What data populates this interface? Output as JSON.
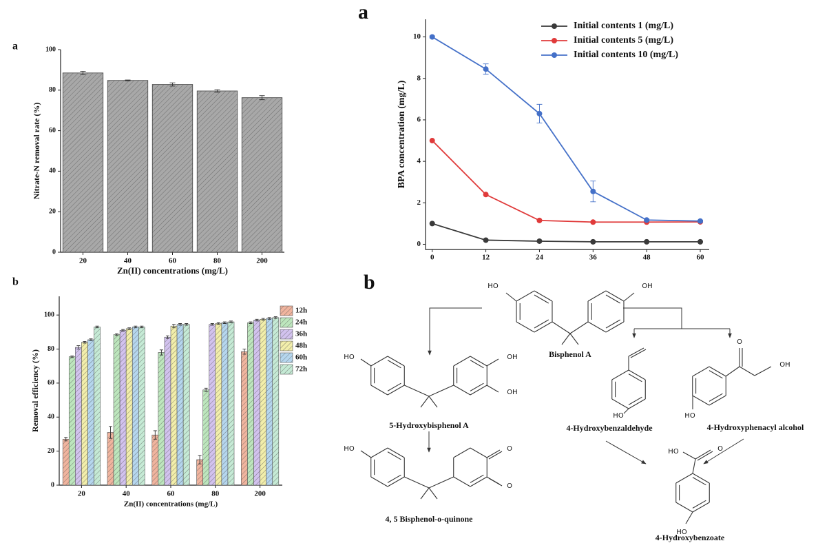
{
  "chart_data": [
    {
      "type": "bar",
      "panel_label": "a",
      "xlabel": "Zn(II) concentrations (mg/L)",
      "ylabel": "Nitrate-N removal rate (%)",
      "categories": [
        "20",
        "40",
        "60",
        "80",
        "200"
      ],
      "values": [
        88.5,
        84.8,
        82.8,
        79.6,
        76.3
      ],
      "errors": [
        0.8,
        0.2,
        0.8,
        0.6,
        1.0
      ],
      "color": "#a8a8a8",
      "hatch": true,
      "ylim": [
        0,
        100
      ],
      "yticks": [
        0,
        20,
        40,
        60,
        80,
        100
      ]
    },
    {
      "type": "line",
      "panel_label": "a",
      "ylabel": "BPA concentration (mg/L)",
      "x": [
        0,
        12,
        24,
        36,
        48,
        60
      ],
      "xlim": [
        -1.5,
        62
      ],
      "xticks": [
        0,
        12,
        24,
        36,
        48,
        60
      ],
      "ylim": [
        -0.25,
        10.85
      ],
      "yticks": [
        0,
        2,
        4,
        6,
        8,
        10
      ],
      "legend": "upper right",
      "series": [
        {
          "name": "Initial contents 1 (mg/L)",
          "color": "#3a3a3a",
          "values": [
            1.0,
            0.2,
            0.15,
            0.12,
            0.12,
            0.12
          ]
        },
        {
          "name": "Initial contents 5 (mg/L)",
          "color": "#e03a3a",
          "values": [
            5.0,
            2.4,
            1.15,
            1.07,
            1.07,
            1.08
          ]
        },
        {
          "name": "Initial contents 10 (mg/L)",
          "color": "#4470c8",
          "values": [
            10.0,
            8.45,
            6.3,
            2.55,
            1.17,
            1.12
          ],
          "errors": [
            0.05,
            0.25,
            0.45,
            0.5,
            0.05,
            0.05
          ]
        }
      ]
    },
    {
      "type": "grouped_bar",
      "panel_label": "b",
      "xlabel": "Zn(II) concentrations (mg/L)",
      "ylabel": "Removal efficiency (%)",
      "categories": [
        "20",
        "40",
        "60",
        "80",
        "200"
      ],
      "ylim": [
        0,
        111
      ],
      "yticks": [
        0,
        20,
        40,
        60,
        80,
        100
      ],
      "hatch": true,
      "legend": "right",
      "series": [
        {
          "name": "12h",
          "color": "#f0b49e",
          "values": [
            27,
            31,
            29.5,
            15,
            78.5
          ],
          "errors": [
            1,
            3.5,
            2.5,
            2.5,
            1.5
          ]
        },
        {
          "name": "24h",
          "color": "#bde6bd",
          "values": [
            75.5,
            88.5,
            78,
            56,
            95.5
          ],
          "errors": [
            0.5,
            0.5,
            1.5,
            1,
            0.5
          ]
        },
        {
          "name": "36h",
          "color": "#d2c2ee",
          "values": [
            81,
            91,
            87,
            94.5,
            97
          ],
          "errors": [
            1,
            0.5,
            0.8,
            0.5,
            0.5
          ]
        },
        {
          "name": "48h",
          "color": "#f2eeaa",
          "values": [
            84,
            92,
            93.5,
            95,
            97.5
          ],
          "errors": [
            0.5,
            0.5,
            1,
            0.5,
            0.5
          ]
        },
        {
          "name": "60h",
          "color": "#b5d6ee",
          "values": [
            85.5,
            93,
            94.5,
            95.5,
            98
          ],
          "errors": [
            0.5,
            0.5,
            0.5,
            0.5,
            0.5
          ]
        },
        {
          "name": "72h",
          "color": "#c5ead5",
          "values": [
            93,
            93,
            94.5,
            96,
            98.5
          ],
          "errors": [
            0.5,
            0.5,
            0.5,
            0.5,
            0.5
          ]
        }
      ]
    }
  ],
  "diagram": {
    "panel_label": "b",
    "molecules": [
      {
        "name": "Bisphenol A",
        "atoms": [
          "HO",
          "OH"
        ]
      },
      {
        "name": "5-Hydroxybisphenol A",
        "atoms": [
          "HO",
          "OH",
          "OH"
        ]
      },
      {
        "name": "4, 5 Bisphenol-o-quinone",
        "atoms": [
          "HO",
          "O",
          "O"
        ]
      },
      {
        "name": "4-Hydroxybenzaldehyde",
        "atoms": [
          "HO"
        ]
      },
      {
        "name": "4-Hydroxyphenacyl alcohol",
        "atoms": [
          "O",
          "OH",
          "HO"
        ]
      },
      {
        "name": "4-Hydroxybenzoate",
        "atoms": [
          "HO",
          "O",
          "HO"
        ]
      }
    ]
  }
}
